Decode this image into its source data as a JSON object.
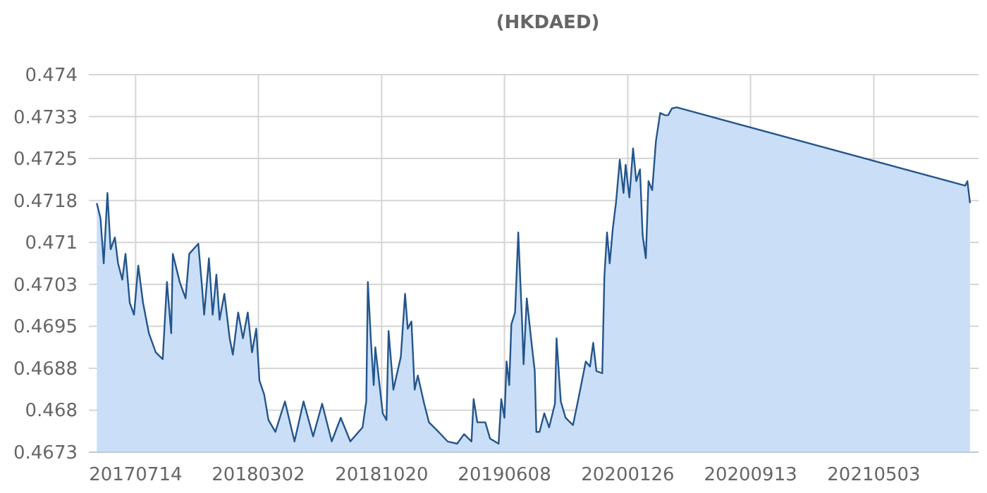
{
  "chart_data": {
    "type": "area",
    "title": "(HKDAED)",
    "xlim": [
      "2017-04-17",
      "2021-11-16"
    ],
    "xticks": [
      {
        "value": "2017-07-14",
        "label": "20170714"
      },
      {
        "value": "2018-03-02",
        "label": "20180302"
      },
      {
        "value": "2018-10-20",
        "label": "20181020"
      },
      {
        "value": "2019-06-08",
        "label": "20190608"
      },
      {
        "value": "2020-01-26",
        "label": "20200126"
      },
      {
        "value": "2020-09-13",
        "label": "20200913"
      },
      {
        "value": "2021-05-03",
        "label": "20210503"
      }
    ],
    "ylim": [
      0.4673,
      0.474
    ],
    "yticks": [
      {
        "value": 0.4673,
        "label": "0.4673"
      },
      {
        "value": 0.468044,
        "label": "0.468"
      },
      {
        "value": 0.468789,
        "label": "0.4688"
      },
      {
        "value": 0.469533,
        "label": "0.4695"
      },
      {
        "value": 0.470278,
        "label": "0.4703"
      },
      {
        "value": 0.471022,
        "label": "0.471"
      },
      {
        "value": 0.471767,
        "label": "0.4718"
      },
      {
        "value": 0.472511,
        "label": "0.4725"
      },
      {
        "value": 0.473256,
        "label": "0.4733"
      },
      {
        "value": 0.474,
        "label": "0.474"
      }
    ],
    "grid": true,
    "series": [
      {
        "color": "#24558c",
        "x": [
          "2017-05-02",
          "2017-05-09",
          "2017-05-15",
          "2017-05-22",
          "2017-05-28",
          "2017-06-05",
          "2017-06-11",
          "2017-06-19",
          "2017-06-25",
          "2017-07-03",
          "2017-07-11",
          "2017-07-19",
          "2017-07-28",
          "2017-08-08",
          "2017-08-21",
          "2017-09-03",
          "2017-09-11",
          "2017-09-19",
          "2017-09-22",
          "2017-10-05",
          "2017-10-16",
          "2017-10-23",
          "2017-11-09",
          "2017-11-16",
          "2017-11-20",
          "2017-11-29",
          "2017-12-06",
          "2017-12-13",
          "2017-12-19",
          "2017-12-28",
          "2018-01-07",
          "2018-01-13",
          "2018-01-23",
          "2018-02-01",
          "2018-02-10",
          "2018-02-18",
          "2018-02-26",
          "2018-03-04",
          "2018-03-13",
          "2018-03-21",
          "2018-04-03",
          "2018-04-21",
          "2018-05-09",
          "2018-05-26",
          "2018-06-13",
          "2018-06-30",
          "2018-07-18",
          "2018-08-04",
          "2018-08-22",
          "2018-09-14",
          "2018-09-21",
          "2018-09-24",
          "2018-09-30",
          "2018-10-05",
          "2018-10-08",
          "2018-10-16",
          "2018-10-22",
          "2018-10-29",
          "2018-11-02",
          "2018-11-11",
          "2018-11-25",
          "2018-12-03",
          "2018-12-08",
          "2018-12-15",
          "2018-12-21",
          "2018-12-27",
          "2019-01-08",
          "2019-01-17",
          "2019-02-04",
          "2019-02-21",
          "2019-03-11",
          "2019-03-24",
          "2019-04-07",
          "2019-04-11",
          "2019-04-18",
          "2019-05-03",
          "2019-05-12",
          "2019-05-28",
          "2019-06-02",
          "2019-06-08",
          "2019-06-12",
          "2019-06-17",
          "2019-06-21",
          "2019-06-28",
          "2019-07-04",
          "2019-07-11",
          "2019-07-14",
          "2019-07-20",
          "2019-07-28",
          "2019-08-04",
          "2019-08-07",
          "2019-08-13",
          "2019-08-22",
          "2019-08-31",
          "2019-09-11",
          "2019-09-14",
          "2019-09-22",
          "2019-10-01",
          "2019-10-15",
          "2019-10-25",
          "2019-11-08",
          "2019-11-16",
          "2019-11-22",
          "2019-11-28",
          "2019-12-09",
          "2019-12-13",
          "2019-12-18",
          "2019-12-23",
          "2019-12-29",
          "2020-01-04",
          "2020-01-11",
          "2020-01-18",
          "2020-01-22",
          "2020-01-29",
          "2020-02-05",
          "2020-02-11",
          "2020-02-18",
          "2020-02-23",
          "2020-02-29",
          "2020-03-05",
          "2020-03-12",
          "2020-03-19",
          "2020-03-27",
          "2020-04-05",
          "2020-04-11",
          "2020-04-18",
          "2020-04-27",
          "2021-10-22",
          "2021-10-26",
          "2021-10-31"
        ],
        "values": [
          0.47172,
          0.47145,
          0.47065,
          0.4719,
          0.4709,
          0.47111,
          0.47065,
          0.47036,
          0.47082,
          0.46995,
          0.46974,
          0.47061,
          0.46995,
          0.46941,
          0.46907,
          0.46895,
          0.47032,
          0.46941,
          0.47082,
          0.47032,
          0.47003,
          0.47082,
          0.471,
          0.47023,
          0.46974,
          0.47074,
          0.46974,
          0.47045,
          0.46965,
          0.47011,
          0.46932,
          0.46903,
          0.46978,
          0.46932,
          0.46978,
          0.46907,
          0.46949,
          0.46857,
          0.46832,
          0.46787,
          0.46766,
          0.4682,
          0.46749,
          0.4682,
          0.46758,
          0.46816,
          0.46749,
          0.46791,
          0.46749,
          0.46774,
          0.4682,
          0.47032,
          0.46924,
          0.46849,
          0.46916,
          0.46849,
          0.46799,
          0.46787,
          0.46945,
          0.46841,
          0.46899,
          0.47011,
          0.46949,
          0.46962,
          0.46841,
          0.46866,
          0.46816,
          0.46783,
          0.46766,
          0.46749,
          0.46745,
          0.46762,
          0.46749,
          0.46824,
          0.46783,
          0.46783,
          0.46754,
          0.46745,
          0.46824,
          0.46791,
          0.46891,
          0.46849,
          0.46957,
          0.46978,
          0.4712,
          0.46965,
          0.46886,
          0.47003,
          0.46932,
          0.46874,
          0.46766,
          0.46766,
          0.46799,
          0.46774,
          0.46816,
          0.46932,
          0.4682,
          0.46791,
          0.46778,
          0.46824,
          0.46891,
          0.46882,
          0.46924,
          0.46874,
          0.4687,
          0.47041,
          0.4712,
          0.47065,
          0.47128,
          0.47174,
          0.47249,
          0.4719,
          0.4724,
          0.47182,
          0.47269,
          0.47211,
          0.47232,
          0.47115,
          0.47074,
          0.47211,
          0.47195,
          0.47282,
          0.47332,
          0.47328,
          0.47328,
          0.4734,
          0.47342,
          0.47203,
          0.47211,
          0.47172
        ]
      }
    ]
  }
}
